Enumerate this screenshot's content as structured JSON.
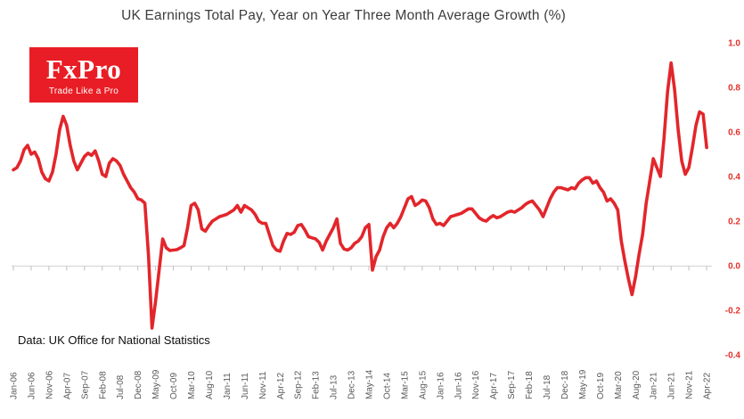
{
  "title": "UK Earnings Total Pay, Year on Year Three Month Average Growth (%)",
  "logo": {
    "brand": "FxPro",
    "tagline": "Trade Like a Pro",
    "bg_color": "#e91d25",
    "text_color": "#ffffff"
  },
  "source_note": "Data: UK Office for National Statistics",
  "colors": {
    "line": "#e2262b",
    "y_axis_labels": "#e3312b",
    "x_axis_labels": "#595959",
    "gridline": "#d9d9d9",
    "tick": "#bfbfbf",
    "title": "#3d3d3d"
  },
  "chart_data": {
    "type": "line",
    "title": "UK Earnings Total Pay, Year on Year Three Month Average Growth (%)",
    "xlabel": "",
    "ylabel": "",
    "ylim": [
      -0.4,
      1.0
    ],
    "gridline_at": 0,
    "grid": "zero-line-only",
    "legend_position": "none",
    "y_tick_labels": [
      "1.0",
      "0.8",
      "0.6",
      "0.4",
      "0.2",
      "0.0",
      "-0.2",
      "-0.4"
    ],
    "y_tick_values": [
      1.0,
      0.8,
      0.6,
      0.4,
      0.2,
      0.0,
      -0.2,
      -0.4
    ],
    "x_tick_labels": [
      "Jan-06",
      "Jun-06",
      "Nov-06",
      "Apr-07",
      "Sep-07",
      "Feb-08",
      "Jul-08",
      "Dec-08",
      "May-09",
      "Oct-09",
      "Mar-10",
      "Aug-10",
      "Jan-11",
      "Jun-11",
      "Nov-11",
      "Apr-12",
      "Sep-12",
      "Feb-13",
      "Jul-13",
      "Dec-13",
      "May-14",
      "Oct-14",
      "Mar-15",
      "Aug-15",
      "Jan-16",
      "Jun-16",
      "Nov-16",
      "Apr-17",
      "Sep-17",
      "Feb-18",
      "Jul-18",
      "Dec-18",
      "May-19",
      "Oct-19",
      "Mar-20",
      "Aug-20",
      "Jan-21",
      "Jun-21",
      "Nov-21",
      "Apr-22"
    ],
    "x_tick_every_n_months": 5,
    "series": [
      {
        "name": "UK Earnings Total Pay YoY 3-month average growth (%)",
        "start": "Jan-06",
        "end": "Apr-22",
        "frequency": "monthly",
        "values": [
          0.43,
          0.44,
          0.47,
          0.52,
          0.54,
          0.5,
          0.51,
          0.48,
          0.42,
          0.39,
          0.38,
          0.42,
          0.5,
          0.61,
          0.67,
          0.63,
          0.54,
          0.47,
          0.43,
          0.46,
          0.49,
          0.505,
          0.495,
          0.515,
          0.47,
          0.41,
          0.4,
          0.46,
          0.48,
          0.47,
          0.45,
          0.41,
          0.38,
          0.35,
          0.33,
          0.3,
          0.295,
          0.28,
          0.05,
          -0.28,
          -0.16,
          -0.02,
          0.12,
          0.08,
          0.068,
          0.07,
          0.072,
          0.08,
          0.09,
          0.17,
          0.27,
          0.28,
          0.25,
          0.165,
          0.155,
          0.18,
          0.2,
          0.21,
          0.22,
          0.225,
          0.23,
          0.24,
          0.25,
          0.27,
          0.24,
          0.27,
          0.26,
          0.25,
          0.23,
          0.2,
          0.19,
          0.19,
          0.14,
          0.09,
          0.07,
          0.065,
          0.11,
          0.145,
          0.14,
          0.15,
          0.18,
          0.185,
          0.16,
          0.13,
          0.125,
          0.12,
          0.105,
          0.07,
          0.11,
          0.14,
          0.17,
          0.21,
          0.1,
          0.075,
          0.07,
          0.08,
          0.1,
          0.11,
          0.13,
          0.17,
          0.185,
          -0.02,
          0.04,
          0.07,
          0.13,
          0.17,
          0.19,
          0.17,
          0.19,
          0.22,
          0.26,
          0.3,
          0.31,
          0.27,
          0.28,
          0.295,
          0.29,
          0.26,
          0.21,
          0.185,
          0.19,
          0.18,
          0.2,
          0.22,
          0.225,
          0.23,
          0.235,
          0.245,
          0.255,
          0.255,
          0.235,
          0.215,
          0.205,
          0.2,
          0.215,
          0.225,
          0.215,
          0.22,
          0.23,
          0.24,
          0.245,
          0.24,
          0.25,
          0.26,
          0.275,
          0.285,
          0.29,
          0.27,
          0.25,
          0.22,
          0.26,
          0.3,
          0.33,
          0.35,
          0.35,
          0.345,
          0.34,
          0.35,
          0.345,
          0.37,
          0.385,
          0.395,
          0.395,
          0.37,
          0.38,
          0.35,
          0.33,
          0.29,
          0.3,
          0.28,
          0.25,
          0.11,
          0.02,
          -0.06,
          -0.13,
          -0.05,
          0.05,
          0.14,
          0.28,
          0.38,
          0.48,
          0.44,
          0.4,
          0.57,
          0.78,
          0.91,
          0.79,
          0.61,
          0.47,
          0.41,
          0.44,
          0.53,
          0.63,
          0.69,
          0.68,
          0.53
        ]
      }
    ]
  }
}
